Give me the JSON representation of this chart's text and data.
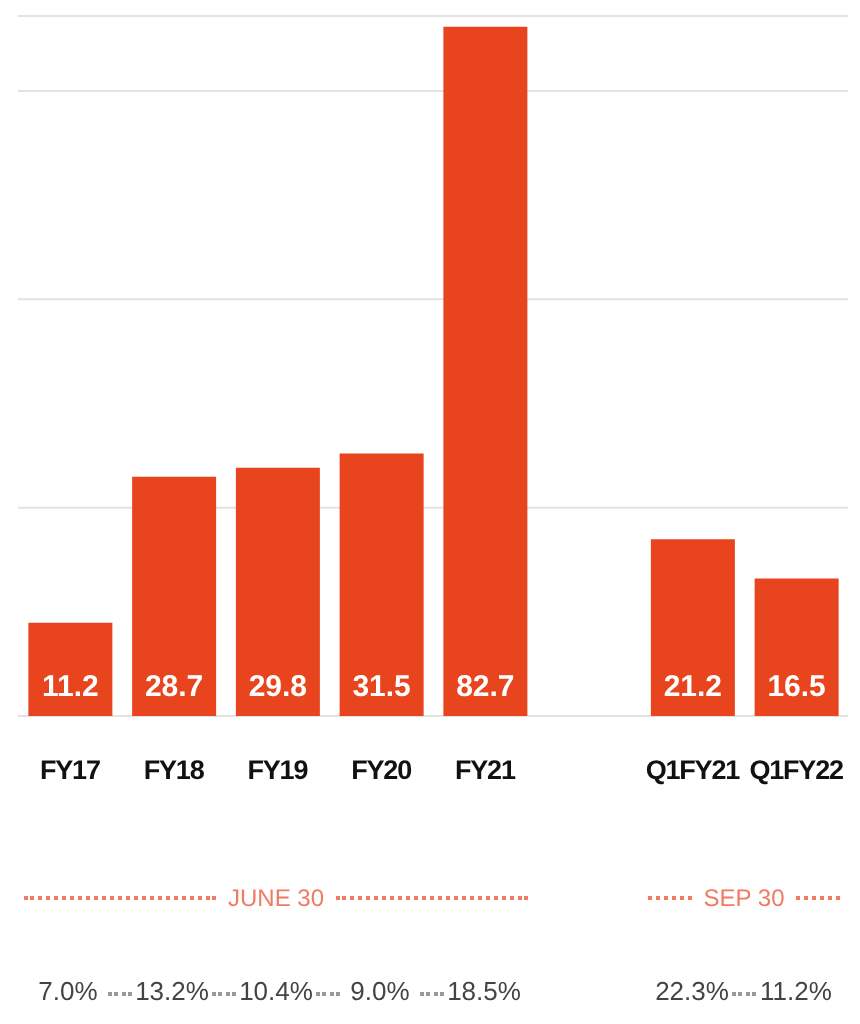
{
  "chart_data": {
    "type": "bar",
    "categories": [
      "FY17",
      "FY18",
      "FY19",
      "FY20",
      "FY21",
      null,
      "Q1FY21",
      "Q1FY22"
    ],
    "values": [
      11.2,
      28.7,
      29.8,
      31.5,
      82.7,
      null,
      21.2,
      16.5
    ],
    "color": "#e8441e",
    "data_labels": true,
    "ylim": [
      0,
      84
    ],
    "grid": "y",
    "tick_labels": "x",
    "legend": false,
    "annotations": [
      "JUNE 30",
      "SEP 30",
      "7.0%",
      "13.2%",
      "10.4%",
      "9.0%",
      "18.5%",
      "22.3%",
      "11.2%"
    ]
  }
}
